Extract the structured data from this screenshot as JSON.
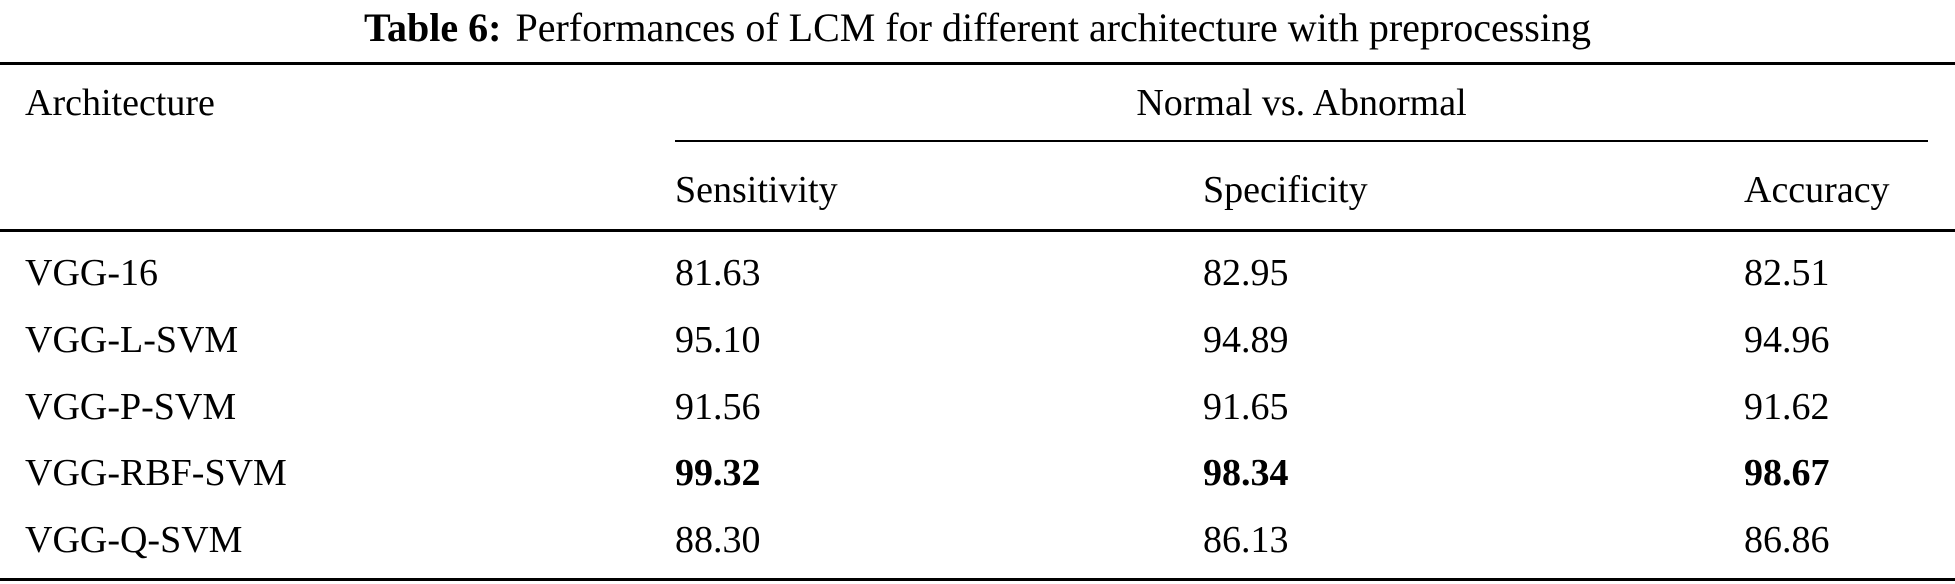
{
  "caption": {
    "label": "Table 6:",
    "text": "Performances of LCM for different architecture with preprocessing"
  },
  "headers": {
    "architecture": "Architecture",
    "span": "Normal vs. Abnormal",
    "sensitivity": "Sensitivity",
    "specificity": "Specificity",
    "accuracy": "Accuracy"
  },
  "rows": [
    {
      "architecture": "VGG-16",
      "sensitivity": "81.63",
      "specificity": "82.95",
      "accuracy": "82.51",
      "bold": false
    },
    {
      "architecture": "VGG-L-SVM",
      "sensitivity": "95.10",
      "specificity": "94.89",
      "accuracy": "94.96",
      "bold": false
    },
    {
      "architecture": "VGG-P-SVM",
      "sensitivity": "91.56",
      "specificity": "91.65",
      "accuracy": "91.62",
      "bold": false
    },
    {
      "architecture": "VGG-RBF-SVM",
      "sensitivity": "99.32",
      "specificity": "98.34",
      "accuracy": "98.67",
      "bold": true
    },
    {
      "architecture": "VGG-Q-SVM",
      "sensitivity": "88.30",
      "specificity": "86.13",
      "accuracy": "86.86",
      "bold": false
    }
  ],
  "colors": {
    "text": "#000000",
    "background": "#ffffff",
    "rule": "#000000"
  }
}
